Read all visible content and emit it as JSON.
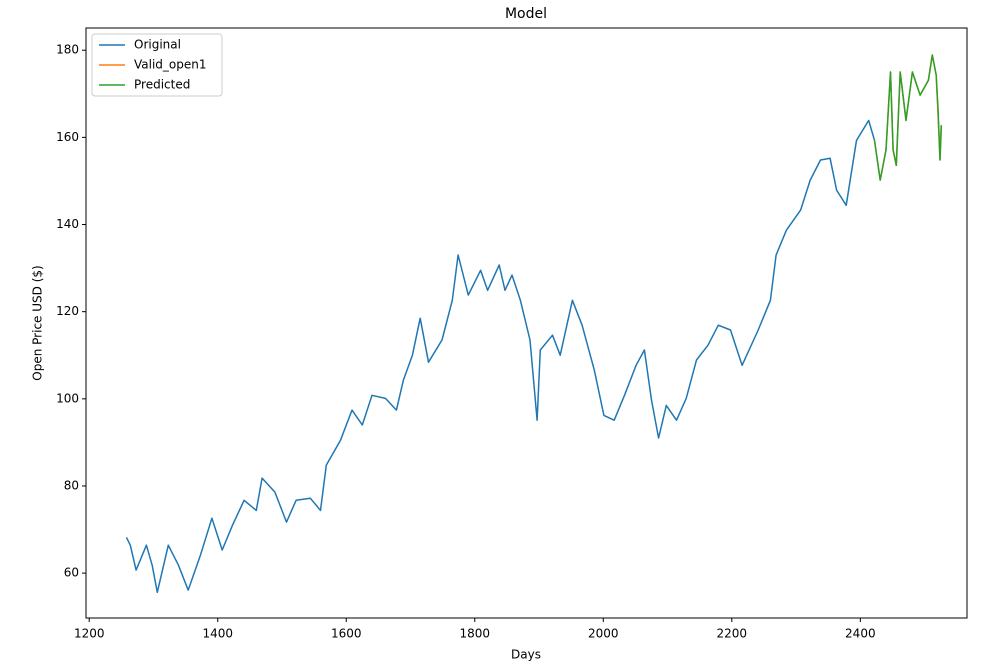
{
  "chart_data": {
    "type": "line",
    "title": "Model",
    "xlabel": "Days",
    "ylabel": "Open Price USD ($)",
    "xlim": [
      1195,
      2566
    ],
    "ylim": [
      49.7,
      185.1
    ],
    "xticks": [
      1200,
      1400,
      1600,
      1800,
      2000,
      2200,
      2400
    ],
    "yticks": [
      60,
      80,
      100,
      120,
      140,
      160,
      180
    ],
    "legend": "upper left",
    "series": [
      {
        "name": "Original",
        "color": "#1f77b4",
        "x": [
          1258,
          1264,
          1273,
          1289,
          1298,
          1306,
          1323,
          1339,
          1354,
          1373,
          1391,
          1407,
          1423,
          1441,
          1460,
          1469,
          1489,
          1507,
          1522,
          1544,
          1560,
          1569,
          1591,
          1609,
          1625,
          1640,
          1661,
          1678,
          1689,
          1703,
          1715,
          1728,
          1749,
          1765,
          1774,
          1790,
          1809,
          1820,
          1838,
          1847,
          1858,
          1871,
          1886,
          1897,
          1902,
          1921,
          1933,
          1952,
          1967,
          1986,
          2001,
          2017,
          2033,
          2051,
          2064,
          2075,
          2086,
          2098,
          2114,
          2129,
          2145,
          2163,
          2179,
          2198,
          2216,
          2241,
          2260,
          2269,
          2285,
          2307,
          2322,
          2338,
          2353,
          2363,
          2378,
          2394,
          2413,
          2422
        ],
        "values": [
          68.2,
          66.4,
          60.7,
          66.4,
          61.8,
          55.6,
          66.4,
          61.8,
          56.1,
          64.1,
          72.6,
          65.3,
          71.0,
          76.7,
          74.4,
          81.8,
          78.6,
          71.7,
          76.7,
          77.2,
          74.4,
          84.8,
          90.5,
          97.4,
          94.0,
          100.8,
          100.1,
          97.4,
          104.3,
          110.0,
          118.5,
          108.4,
          113.5,
          122.6,
          133.0,
          123.8,
          129.5,
          124.9,
          130.7,
          124.9,
          128.4,
          122.6,
          113.5,
          95.1,
          111.2,
          114.6,
          110.0,
          122.6,
          116.9,
          106.6,
          96.2,
          95.1,
          100.8,
          107.7,
          111.2,
          99.7,
          91.0,
          98.5,
          95.1,
          100.1,
          108.9,
          112.3,
          116.9,
          115.8,
          107.7,
          115.8,
          122.6,
          133.0,
          138.7,
          143.3,
          150.2,
          154.8,
          155.2,
          147.9,
          144.4,
          159.3,
          163.9,
          159.3
        ]
      },
      {
        "name": "Valid_open1",
        "color": "#ff7f0e",
        "x": [
          2422,
          2431,
          2440,
          2447,
          2451,
          2456,
          2462,
          2471,
          2481,
          2493,
          2506,
          2512,
          2518,
          2521,
          2524,
          2526
        ],
        "values": [
          159.3,
          150.2,
          157.1,
          175.0,
          157.1,
          153.6,
          175.0,
          163.9,
          175.0,
          169.7,
          173.1,
          178.9,
          174.3,
          165.0,
          154.8,
          162.8
        ]
      },
      {
        "name": "Predicted",
        "color": "#2ca02c",
        "x": [
          2422,
          2431,
          2440,
          2447,
          2451,
          2456,
          2462,
          2471,
          2481,
          2493,
          2506,
          2512,
          2518,
          2521,
          2524,
          2526
        ],
        "values": [
          159.3,
          150.2,
          157.1,
          175.0,
          157.1,
          153.6,
          175.0,
          163.9,
          175.0,
          169.7,
          173.1,
          178.9,
          174.3,
          166.2,
          154.8,
          162.8
        ]
      }
    ]
  }
}
